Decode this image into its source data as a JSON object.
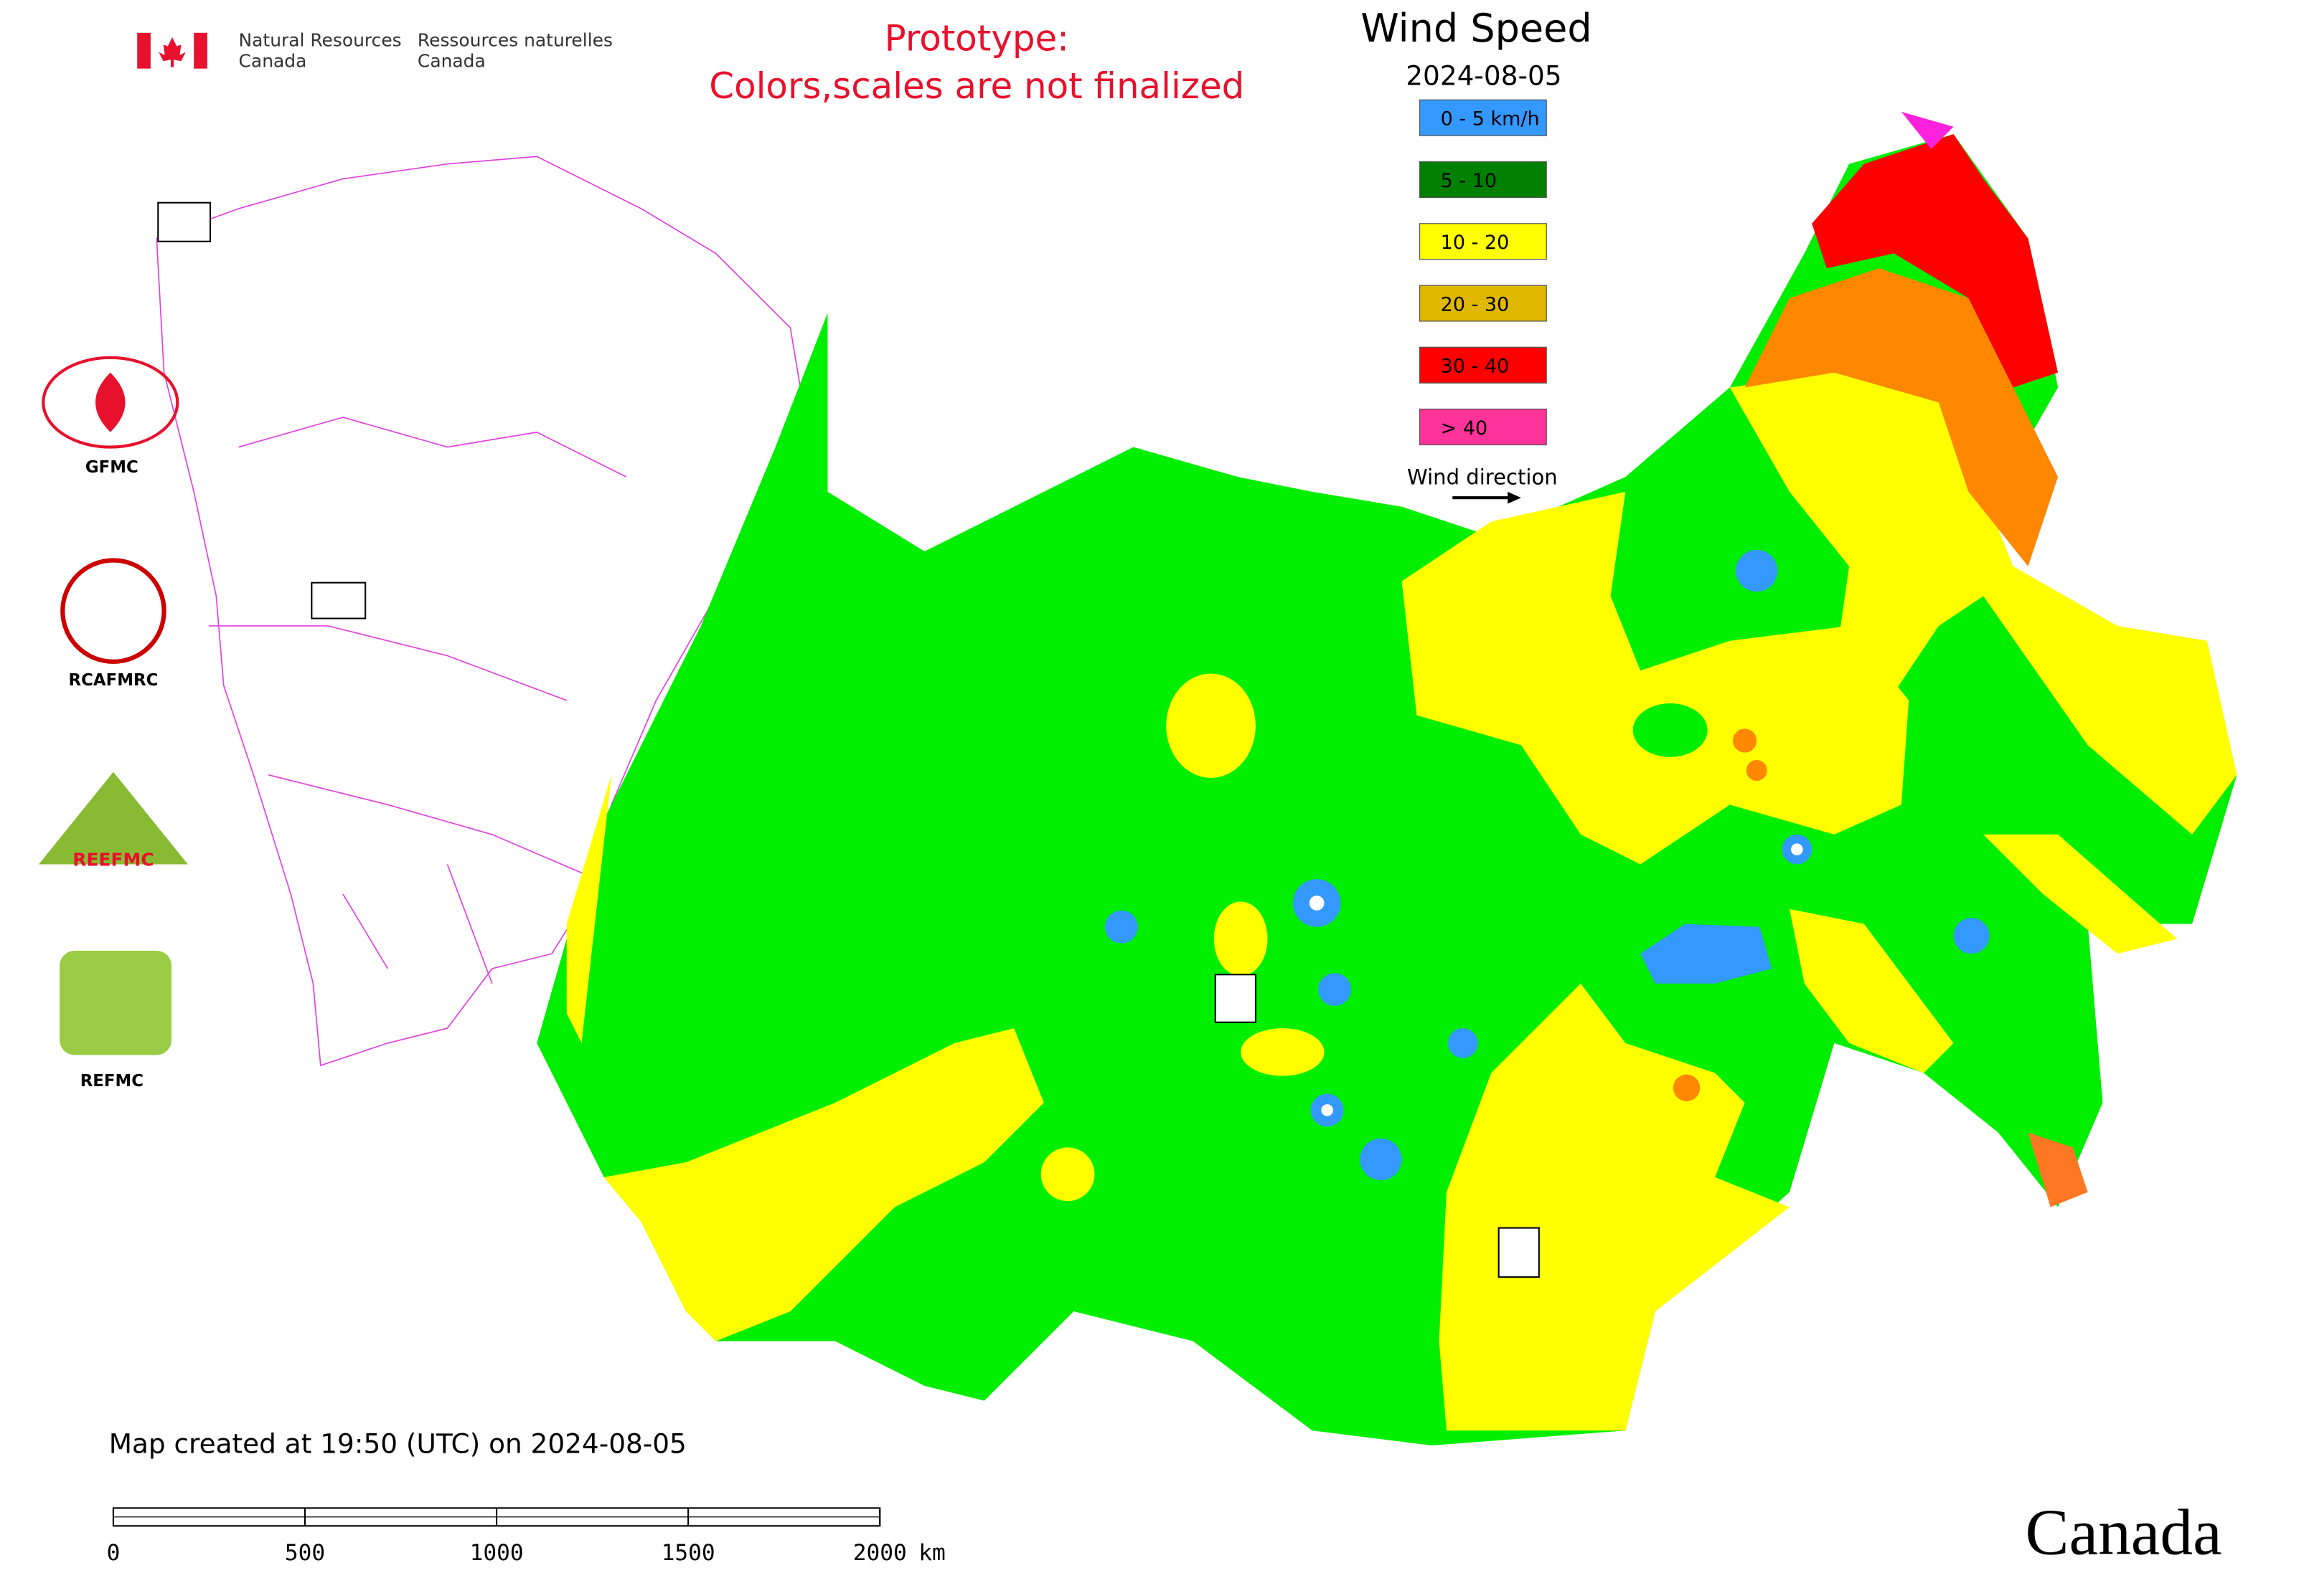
{
  "header": {
    "agency_en": [
      "Natural Resources",
      "Canada"
    ],
    "agency_fr": [
      "Ressources naturelles",
      "Canada"
    ],
    "notice": [
      "Prototype:",
      "Colors,scales are not finalized"
    ]
  },
  "title": "Wind Speed",
  "date": "2024-08-05",
  "legend": {
    "items": [
      {
        "label": "0 - 5 km/h",
        "color": "#3399ff"
      },
      {
        "label": "5 - 10",
        "color": "#008000"
      },
      {
        "label": "10 - 20",
        "color": "#ffff00"
      },
      {
        "label": "20 - 30",
        "color": "#e0b800"
      },
      {
        "label": "30 - 40",
        "color": "#ff0000"
      },
      {
        "label": "> 40",
        "color": "#ff3399"
      }
    ],
    "direction": "Wind direction"
  },
  "logos": [
    "GFMC",
    "RCAFMRC",
    "REEFMC",
    "REFMC"
  ],
  "footer": {
    "created": "Map created at 19:50 (UTC) on 2024-08-05",
    "wordmark": "Canada"
  },
  "scale_bar": {
    "ticks": [
      0,
      500,
      1000,
      1500,
      2000
    ],
    "unit": "km"
  }
}
